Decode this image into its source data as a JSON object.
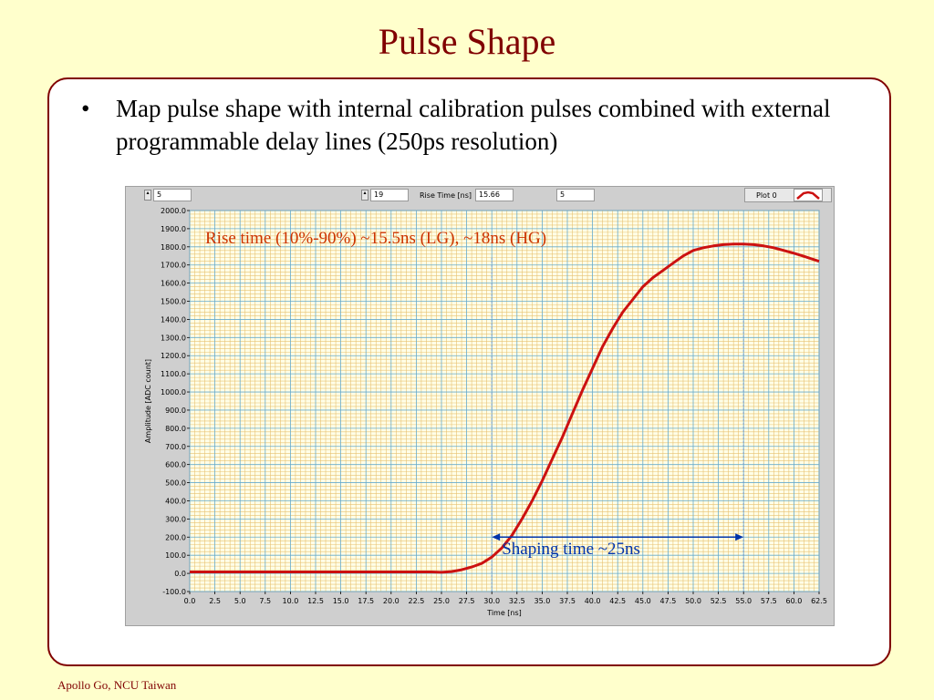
{
  "slide": {
    "title": "Pulse Shape",
    "bullet": "Map pulse shape with internal calibration pulses combined with external programmable delay lines (250ps resolution)",
    "footer": "Apollo Go, NCU Taiwan"
  },
  "controls": {
    "field1": "5",
    "field2": "19",
    "rise_time_label": "Rise Time [ns]",
    "rise_time_value": "15.66",
    "field4": "5",
    "plot_legend": "Plot 0"
  },
  "colors": {
    "curve": "#cc1111",
    "annotation_rise": "#cc3300",
    "annotation_shaping": "#0033aa",
    "grid_major": "#66aacc",
    "grid_minor": "#e8c070",
    "plot_bg": "#ffffe8"
  },
  "chart_data": {
    "type": "line",
    "xlabel": "Time [ns]",
    "ylabel": "Amplitude [ADC count]",
    "xlim": [
      0,
      62.5
    ],
    "ylim": [
      -100,
      2000
    ],
    "x_ticks": [
      "0.0",
      "2.5",
      "5.0",
      "7.5",
      "10.0",
      "12.5",
      "15.0",
      "17.5",
      "20.0",
      "22.5",
      "25.0",
      "27.5",
      "30.0",
      "32.5",
      "35.0",
      "37.5",
      "40.0",
      "42.5",
      "45.0",
      "47.5",
      "50.0",
      "52.5",
      "55.0",
      "57.5",
      "60.0",
      "62.5"
    ],
    "y_ticks": [
      "2000.0",
      "1900.0",
      "1800.0",
      "1700.0",
      "1600.0",
      "1500.0",
      "1400.0",
      "1300.0",
      "1200.0",
      "1100.0",
      "1000.0",
      "900.0",
      "800.0",
      "700.0",
      "600.0",
      "500.0",
      "400.0",
      "300.0",
      "200.0",
      "100.0",
      "0.0",
      "-100.0"
    ],
    "grid": true,
    "series": [
      {
        "x": [
          0,
          5,
          10,
          15,
          20,
          24,
          25,
          26,
          27,
          28,
          29,
          30,
          31,
          32,
          33,
          34,
          35,
          36,
          37,
          38,
          39,
          40,
          41,
          42,
          43,
          44,
          45,
          46,
          47,
          48,
          49,
          50,
          51,
          52,
          53,
          54,
          55,
          56,
          57,
          58,
          59,
          60,
          61,
          62.5
        ],
        "y": [
          8,
          8,
          8,
          8,
          8,
          8,
          6,
          10,
          20,
          35,
          55,
          90,
          140,
          210,
          300,
          400,
          510,
          630,
          750,
          880,
          1010,
          1130,
          1250,
          1350,
          1440,
          1510,
          1580,
          1630,
          1670,
          1710,
          1750,
          1780,
          1795,
          1805,
          1812,
          1815,
          1815,
          1812,
          1805,
          1795,
          1780,
          1765,
          1748,
          1720
        ]
      }
    ],
    "annotations": {
      "rise_time": "Rise time (10%-90%) ~15.5ns (LG), ~18ns (HG)",
      "shaping_time": "Shaping time ~25ns",
      "shaping_start_x": 30,
      "shaping_end_x": 55,
      "shaping_arrow_y": 200
    }
  }
}
